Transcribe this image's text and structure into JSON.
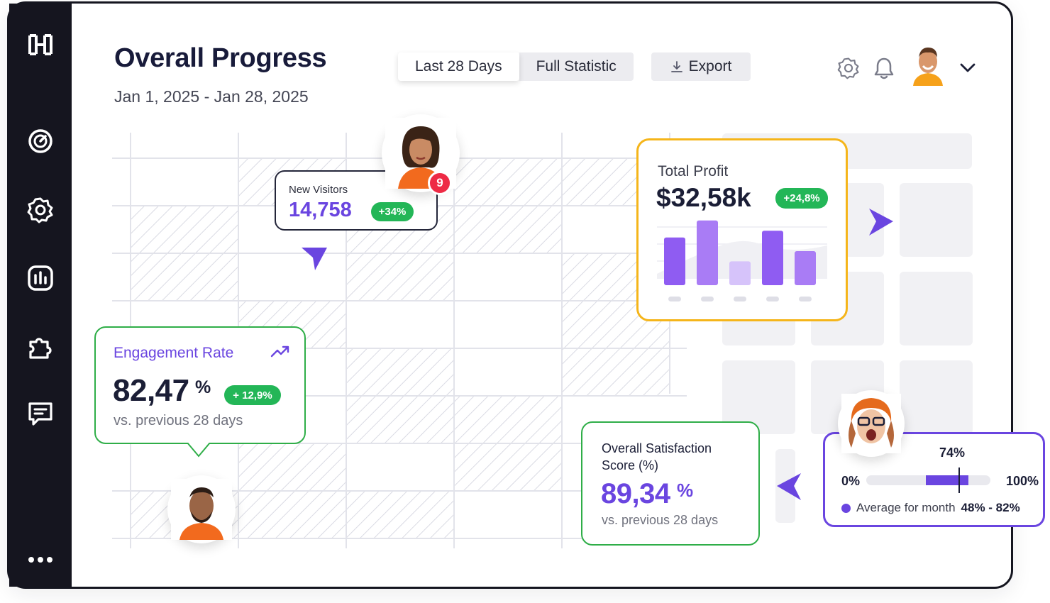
{
  "header": {
    "title": "Overall Progress",
    "date_range": "Jan 1, 2025 - Jan 28, 2025",
    "tabs": [
      {
        "label": "Last 28 Days",
        "active": true
      },
      {
        "label": "Full Statistic",
        "active": false
      }
    ],
    "export_label": "Export",
    "icons": [
      "settings-icon",
      "bell-icon",
      "chevron-down-icon"
    ]
  },
  "sidebar": {
    "logo": "logo-icon",
    "items": [
      "dashboard-icon",
      "settings-icon",
      "analytics-icon",
      "puzzle-icon",
      "messages-icon",
      "more-icon"
    ]
  },
  "new_visitors": {
    "label": "New Visitors",
    "value": "14,758",
    "change": "+34%",
    "notification_count": "9"
  },
  "total_profit": {
    "label": "Total Profit",
    "value": "$32,58k",
    "change": "+24,8%",
    "bars": [
      0.7,
      0.95,
      0.35,
      0.8,
      0.5
    ]
  },
  "engagement": {
    "label": "Engagement Rate",
    "value": "82,47",
    "unit": "%",
    "change": "+ 12,9%",
    "comparison": "vs. previous 28 days"
  },
  "satisfaction": {
    "label": "Overall Satisfaction Score (%)",
    "value": "89,34",
    "unit": "%",
    "comparison": "vs. previous 28 days"
  },
  "range": {
    "current": "74%",
    "min_label": "0%",
    "max_label": "100%",
    "legend_prefix": "Average for month",
    "legend_value": "48% - 82%",
    "range_low": 0.48,
    "range_high": 0.82,
    "current_value": 0.74
  },
  "colors": {
    "accent": "#6a45e0",
    "positive": "#23b657",
    "highlight": "#f5b51a",
    "sidebar": "#15151f"
  }
}
